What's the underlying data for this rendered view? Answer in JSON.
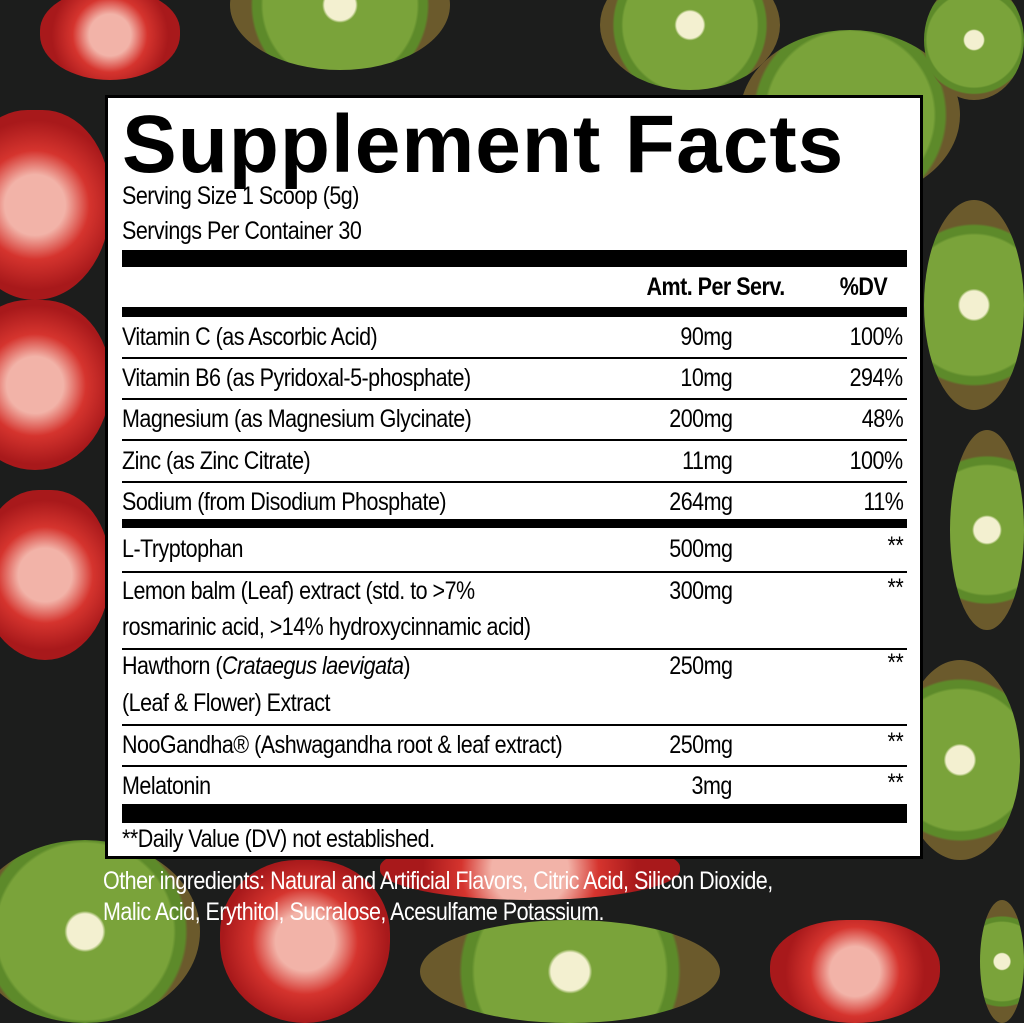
{
  "title": "Supplement Facts",
  "serving_size": "Serving Size 1 Scoop (5g)",
  "servings_per_container": "Servings Per Container 30",
  "headers": {
    "amount": "Amt. Per Serv.",
    "dv": "%DV"
  },
  "rows": [
    {
      "name": "Vitamin C (as Ascorbic Acid)",
      "amount": "90mg",
      "dv": "100%"
    },
    {
      "name": "Vitamin B6 (as Pyridoxal-5-phosphate)",
      "amount": "10mg",
      "dv": "294%"
    },
    {
      "name": "Magnesium (as Magnesium Glycinate)",
      "amount": "200mg",
      "dv": "48%"
    },
    {
      "name": "Zinc (as Zinc Citrate)",
      "amount": "11mg",
      "dv": "100%"
    },
    {
      "name": "Sodium (from Disodium Phosphate)",
      "amount": "264mg",
      "dv": "11%"
    },
    {
      "name": "L-Tryptophan",
      "amount": "500mg",
      "dv": "**"
    },
    {
      "name": "Lemon balm (Leaf) extract (std. to >7%",
      "name2": "rosmarinic acid, >14% hydroxycinnamic acid)",
      "amount": "300mg",
      "dv": "**"
    },
    {
      "name": "Hawthorn (",
      "name_italic": "Crataegus laevigata",
      "name_end": ")",
      "name2": "(Leaf & Flower) Extract",
      "amount": "250mg",
      "dv": "**"
    },
    {
      "name": "NooGandha® (Ashwagandha root & leaf extract)",
      "amount": "250mg",
      "dv": "**"
    },
    {
      "name": "Melatonin",
      "amount": "3mg",
      "dv": "**"
    }
  ],
  "footnote": "**Daily Value (DV) not established.",
  "other_ingredients_1": "Other ingredients: Natural and Artificial Flavors, Citric Acid, Silicon Dioxide,",
  "other_ingredients_2": "Malic Acid, Erythitol, Sucralose, Acesulfame Potassium."
}
